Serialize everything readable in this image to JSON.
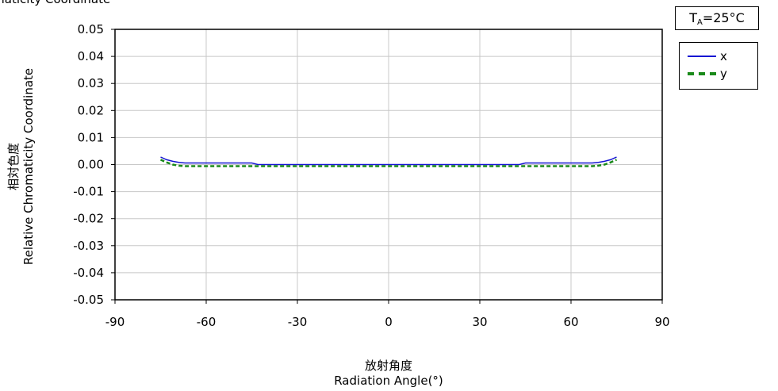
{
  "header": {
    "title": "omaticity Coordinate"
  },
  "condition": {
    "prefix": "T",
    "subscript": "A",
    "value": "=25°C"
  },
  "legend": {
    "x_label": "x",
    "y_label": "y"
  },
  "axes": {
    "ylabel_jp": "相対色度",
    "ylabel_en": "Relative Chromaticity Coordinate",
    "xlabel_jp": "放射角度",
    "xlabel_en": "Radiation Angle(°)"
  },
  "colors": {
    "x_series": "#1414d2",
    "y_series": "#1a8a1a",
    "grid": "#c8c8c8"
  },
  "chart_data": {
    "type": "line",
    "xlim": [
      -90,
      90
    ],
    "ylim": [
      -0.05,
      0.05
    ],
    "xticks": [
      "-90",
      "-60",
      "-30",
      "0",
      "30",
      "60",
      "90"
    ],
    "yticks": [
      "0.05",
      "0.04",
      "0.03",
      "0.02",
      "0.01",
      "0.00",
      "-0.01",
      "-0.02",
      "-0.03",
      "-0.04",
      "-0.05"
    ],
    "grid": true,
    "legend_position": "top-right",
    "series": [
      {
        "name": "x",
        "style": "solid",
        "x": [
          -75,
          -73,
          -71,
          -69,
          -67,
          -65,
          -55,
          -45,
          -43,
          -30,
          0,
          30,
          43,
          45,
          55,
          65,
          67,
          69,
          71,
          73,
          75
        ],
        "y": [
          0.0028,
          0.0018,
          0.0012,
          0.0008,
          0.0006,
          0.0006,
          0.0006,
          0.0006,
          0.0,
          0.0,
          0.0,
          0.0,
          0.0,
          0.0006,
          0.0006,
          0.0006,
          0.0006,
          0.0008,
          0.0012,
          0.0018,
          0.0028
        ]
      },
      {
        "name": "y",
        "style": "dashed",
        "x": [
          -75,
          -73,
          -71,
          -69,
          -67,
          -65,
          -55,
          -45,
          -30,
          0,
          30,
          45,
          55,
          65,
          67,
          69,
          71,
          73,
          75
        ],
        "y": [
          0.0018,
          0.0008,
          0.0,
          -0.0004,
          -0.0006,
          -0.0006,
          -0.0006,
          -0.0006,
          -0.0006,
          -0.0006,
          -0.0006,
          -0.0006,
          -0.0006,
          -0.0006,
          -0.0006,
          -0.0004,
          0.0,
          0.0008,
          0.0018
        ]
      }
    ]
  }
}
